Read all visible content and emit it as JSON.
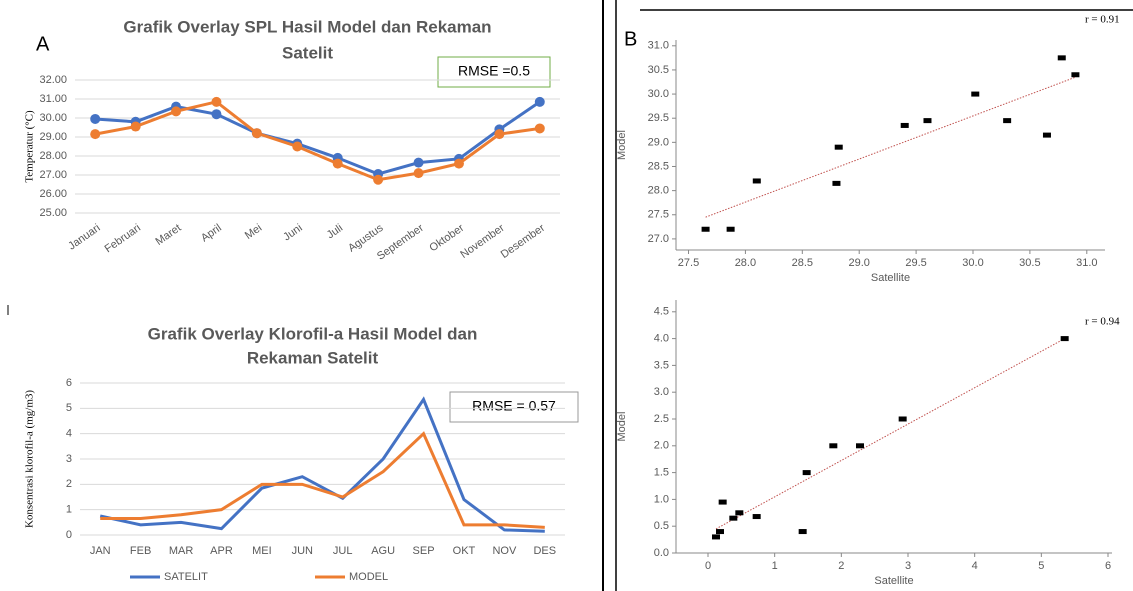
{
  "panel_labels": [
    "A",
    "B"
  ],
  "chart_data": [
    {
      "type": "line",
      "title": [
        "Grafik Overlay SPL Hasil Model dan Rekaman",
        "Satelit"
      ],
      "y_label": "Temperatur (°C)",
      "annotation": "RMSE =0.5",
      "categories": [
        "Januari",
        "Februari",
        "Maret",
        "April",
        "Mei",
        "Juni",
        "Juli",
        "Agustus",
        "September",
        "Oktober",
        "November",
        "Desember"
      ],
      "series": [
        {
          "color": "#4472c4",
          "values": [
            29.95,
            29.8,
            30.6,
            30.2,
            29.2,
            28.65,
            27.9,
            27.05,
            27.65,
            27.85,
            29.4,
            30.85
          ]
        },
        {
          "color": "#ed7d31",
          "values": [
            29.15,
            29.55,
            30.35,
            30.85,
            29.2,
            28.5,
            27.6,
            26.75,
            27.1,
            27.6,
            29.15,
            29.45
          ]
        }
      ],
      "ylim": [
        25,
        32
      ],
      "yticks": [
        {
          "value": 25,
          "label": "25.00"
        },
        {
          "value": 26,
          "label": "26.00"
        },
        {
          "value": 27,
          "label": "27.00"
        },
        {
          "value": 28,
          "label": "28.00"
        },
        {
          "value": 29,
          "label": "29.00"
        },
        {
          "value": 30,
          "label": "30.00"
        },
        {
          "value": 31,
          "label": "31.00"
        },
        {
          "value": 32,
          "label": "32.00"
        }
      ],
      "grid": true,
      "markers": true
    },
    {
      "type": "line",
      "title": [
        "Grafik Overlay Klorofil-a Hasil Model dan",
        "Rekaman Satelit"
      ],
      "y_label": "Konsentrasi klorofil-a (mg/m3)",
      "annotation": "RMSE = 0.57",
      "categories": [
        "JAN",
        "FEB",
        "MAR",
        "APR",
        "MEI",
        "JUN",
        "JUL",
        "AGU",
        "SEP",
        "OKT",
        "NOV",
        "DES"
      ],
      "series": [
        {
          "name": "SATELIT",
          "color": "#4472c4",
          "values": [
            0.75,
            0.4,
            0.5,
            0.25,
            1.85,
            2.3,
            1.45,
            3.0,
            5.35,
            1.4,
            0.2,
            0.15
          ]
        },
        {
          "name": "MODEL",
          "color": "#ed7d31",
          "values": [
            0.65,
            0.65,
            0.8,
            1.0,
            2.0,
            2.0,
            1.5,
            2.5,
            4.0,
            0.4,
            0.4,
            0.3
          ]
        }
      ],
      "ylim": [
        0,
        6
      ],
      "yticks": [
        0,
        1,
        2,
        3,
        4,
        5,
        6
      ],
      "grid": true,
      "markers": false,
      "legend": "bottom"
    },
    {
      "type": "scatter",
      "annotation": "r = 0.91",
      "x_label": "Satellite",
      "y_label": "Model",
      "x": [
        27.65,
        27.87,
        28.1,
        28.8,
        28.82,
        29.4,
        29.6,
        30.02,
        30.3,
        30.65,
        30.78,
        30.9
      ],
      "values": [
        27.2,
        27.2,
        28.2,
        28.15,
        28.9,
        29.35,
        29.45,
        30.0,
        29.45,
        29.15,
        30.75,
        30.4
      ],
      "color": "#000000",
      "trendline": {
        "x": [
          27.65,
          30.9
        ],
        "y": [
          27.45,
          30.35
        ],
        "color": "#c0504d"
      },
      "xlim": [
        27.39,
        31.16
      ],
      "xticks": [
        27.5,
        {
          "value": 28,
          "label": "28.0"
        },
        28.5,
        {
          "value": 29,
          "label": "29.0"
        },
        29.5,
        {
          "value": 30,
          "label": "30.0"
        },
        30.5,
        {
          "value": 31,
          "label": "31.0"
        }
      ],
      "ylim": [
        26.77,
        31.12
      ],
      "yticks": [
        {
          "value": 27,
          "label": "27.0"
        },
        27.5,
        {
          "value": 28,
          "label": "28.0"
        },
        28.5,
        {
          "value": 29,
          "label": "29.0"
        },
        29.5,
        {
          "value": 30,
          "label": "30.0"
        },
        30.5,
        {
          "value": 31,
          "label": "31.0"
        }
      ]
    },
    {
      "type": "scatter",
      "annotation": "r = 0.94",
      "x_label": "Satellite",
      "y_label": "Model",
      "x": [
        0.12,
        0.18,
        0.22,
        0.38,
        0.47,
        0.73,
        1.42,
        1.48,
        1.88,
        2.28,
        2.92,
        5.35
      ],
      "values": [
        0.3,
        0.4,
        0.95,
        0.65,
        0.75,
        0.68,
        0.4,
        1.5,
        2.0,
        2.0,
        2.5,
        4.0
      ],
      "color": "#000000",
      "trendline": {
        "x": [
          0.12,
          5.35
        ],
        "y": [
          0.45,
          4.0
        ],
        "color": "#c0504d"
      },
      "xlim": [
        -0.48,
        6.06
      ],
      "xticks": [
        0,
        1,
        2,
        3,
        4,
        5,
        6
      ],
      "ylim": [
        0,
        4.72
      ],
      "yticks": [
        {
          "value": 0,
          "label": "0.0"
        },
        0.5,
        {
          "value": 1,
          "label": "1.0"
        },
        1.5,
        {
          "value": 2,
          "label": "2.0"
        },
        2.5,
        {
          "value": 3,
          "label": "3.0"
        },
        3.5,
        {
          "value": 4,
          "label": "4.0"
        },
        4.5
      ]
    }
  ]
}
